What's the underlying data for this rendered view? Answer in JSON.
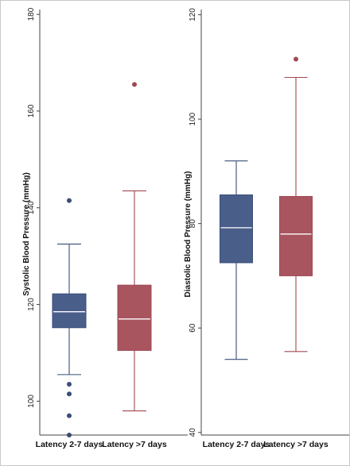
{
  "chart_data": [
    {
      "type": "box",
      "ylabel": "Systolic Blood Pressure (mmHg)",
      "ylim": [
        93,
        181
      ],
      "yticks": [
        100,
        120,
        140,
        160,
        180
      ],
      "grid": false,
      "categories": [
        "Latency 2-7 days",
        "Latency >7 days"
      ],
      "series": [
        {
          "category": "Latency 2-7 days",
          "color": "#4a5e8a",
          "median_color": "#ffffff",
          "whisker_color": "#3a4e78",
          "whisker_low": 105.5,
          "q1": 115.2,
          "median": 118.5,
          "q3": 122.2,
          "whisker_high": 132.5,
          "outliers": [
            141.5,
            103.5,
            101.5,
            97,
            93
          ]
        },
        {
          "category": "Latency >7 days",
          "color": "#a85560",
          "median_color": "#ffffff",
          "whisker_color": "#a04850",
          "whisker_low": 98,
          "q1": 110.5,
          "median": 117,
          "q3": 124,
          "whisker_high": 143.5,
          "outliers": [
            165.5
          ]
        }
      ]
    },
    {
      "type": "box",
      "ylabel": "Diastolic Blood Pressure (mmHg)",
      "ylim": [
        39.5,
        121
      ],
      "yticks": [
        40,
        60,
        80,
        100,
        120
      ],
      "grid": false,
      "categories": [
        "Latency 2-7 days",
        "Latency >7 days"
      ],
      "series": [
        {
          "category": "Latency 2-7 days",
          "color": "#4a5e8a",
          "median_color": "#ffffff",
          "whisker_color": "#3a4e78",
          "whisker_low": 54,
          "q1": 72.5,
          "median": 79.2,
          "q3": 85.5,
          "whisker_high": 92,
          "outliers": []
        },
        {
          "category": "Latency >7 days",
          "color": "#a85560",
          "median_color": "#ffffff",
          "whisker_color": "#a04850",
          "whisker_low": 55.5,
          "q1": 70,
          "median": 78,
          "q3": 85.2,
          "whisker_high": 108,
          "outliers": [
            111.5
          ]
        }
      ]
    }
  ]
}
